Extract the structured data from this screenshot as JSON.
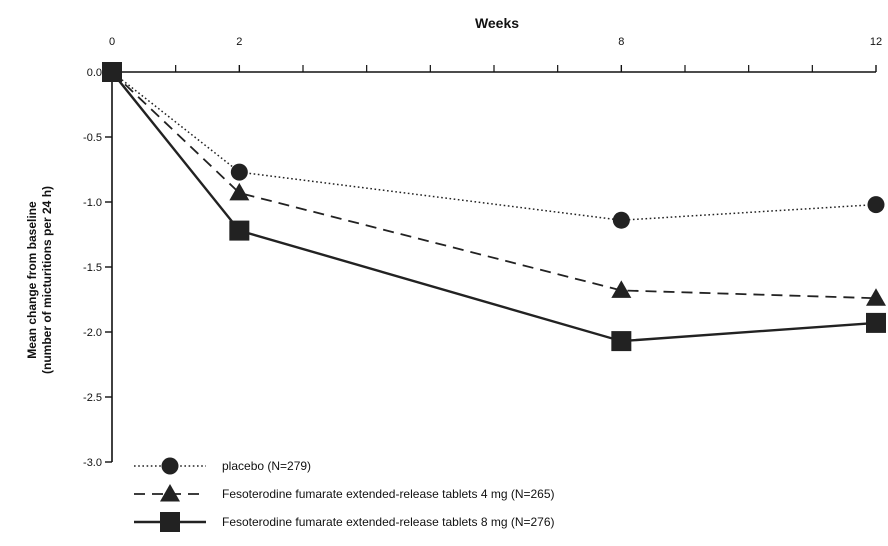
{
  "chart_data": {
    "type": "line",
    "xlabel": "Weeks",
    "ylabel_line1": "Mean change from  baseline",
    "ylabel_line2": "(number of micturitions per 24 h)",
    "x_ticks": [
      0,
      2,
      8,
      12
    ],
    "x_tick_labels": [
      "0",
      "2",
      "8",
      "12"
    ],
    "xlim": [
      0,
      12
    ],
    "y_ticks": [
      0.0,
      -0.5,
      -1.0,
      -1.5,
      -2.0,
      -2.5,
      -3.0
    ],
    "y_tick_labels": [
      "0.0",
      "-0.5",
      "-1.0",
      "-1.5",
      "-2.0",
      "-2.5",
      "-3.0"
    ],
    "ylim": [
      -3.0,
      0.0
    ],
    "x": [
      0,
      2,
      8,
      12
    ],
    "legend_position": "bottom-left",
    "grid": false,
    "series": [
      {
        "name": "placebo  (N=279)",
        "values": [
          0.0,
          -0.77,
          -1.14,
          -1.02
        ],
        "marker": "circle",
        "dash": "dotted",
        "color": "#222222"
      },
      {
        "name": "Fesoterodine fumarate extended-release tablets 4 mg (N=265)",
        "values": [
          0.0,
          -0.93,
          -1.68,
          -1.74
        ],
        "marker": "triangle",
        "dash": "dashed",
        "color": "#222222"
      },
      {
        "name": "Fesoterodine fumarate extended-release tablets 8 mg (N=276)",
        "values": [
          0.0,
          -1.22,
          -2.07,
          -1.93
        ],
        "marker": "square",
        "dash": "solid",
        "color": "#222222"
      }
    ]
  }
}
